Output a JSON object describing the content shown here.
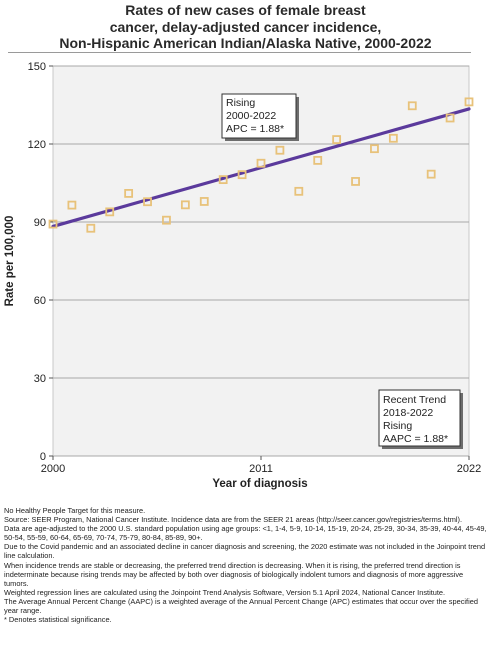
{
  "title_lines": [
    "Rates of new cases of female breast",
    "cancer, delay-adjusted cancer incidence,",
    "Non-Hispanic American Indian/Alaska Native,  2000-2022"
  ],
  "chart_data": {
    "type": "scatter",
    "xlabel": "Year of diagnosis",
    "ylabel": "Rate per 100,000",
    "xlim": [
      2000,
      2022
    ],
    "ylim": [
      0,
      150
    ],
    "x_ticks": [
      "2000",
      "2011",
      "2022"
    ],
    "y_ticks": [
      "0",
      "30",
      "60",
      "90",
      "120",
      "150"
    ],
    "grid": "horizontal",
    "series": [
      {
        "marker": "square",
        "color": "#e8c27a",
        "x": [
          2000,
          2001,
          2002,
          2003,
          2004,
          2005,
          2006,
          2007,
          2008,
          2009,
          2010,
          2011,
          2012,
          2013,
          2014,
          2015,
          2016,
          2017,
          2018,
          2019,
          2020,
          2021,
          2022
        ],
        "y": [
          89.2,
          96.5,
          87.6,
          93.9,
          101.0,
          97.8,
          90.7,
          96.6,
          97.9,
          106.3,
          108.2,
          112.6,
          117.6,
          101.8,
          113.7,
          121.7,
          105.6,
          118.2,
          122.2,
          134.7,
          108.4,
          130.0,
          136.2
        ]
      },
      {
        "line": "trend",
        "color": "#5b3a9c",
        "x": [
          2000,
          2022
        ],
        "y": [
          88.3,
          133.5
        ]
      }
    ],
    "annotations": [
      {
        "lines": [
          "Rising",
          "2000-2022",
          "APC =  1.88*"
        ]
      },
      {
        "lines": [
          "Recent Trend",
          "2018-2022",
          "Rising",
          "AAPC =  1.88*"
        ]
      }
    ]
  },
  "footnotes": [
    "No Healthy People Target for this measure.",
    "Source: SEER Program, National Cancer Institute. Incidence data are from the SEER 21 areas (http://seer.cancer.gov/registries/terms.html).",
    "Data are age-adjusted to the 2000 U.S. standard population using age groups: <1, 1-4, 5-9, 10-14, 15-19, 20-24, 25-29, 30-34, 35-39, 40-44, 45-49, 50-54, 55-59, 60-64, 65-69, 70-74, 75-79, 80-84, 85-89, 90+.",
    "Due to the Covid pandemic and an associated decline in cancer diagnosis and screening, the 2020 estimate was not included in the Joinpoint trend line calculation.",
    "When incidence trends are stable or decreasing, the preferred trend direction is decreasing. When it is rising, the preferred trend direction is indeterminate because rising trends may be affected by both over diagnosis of biologically indolent tumors and diagnosis of more aggressive tumors.",
    "Weighted regression lines are calculated using the Joinpoint Trend Analysis Software, Version 5.1 April 2024, National Cancer Institute.",
    "The Average Annual Percent Change (AAPC) is a weighted average of the Annual Percent Change (APC) estimates that occur over the specified year range.",
    "* Denotes statistical significance."
  ]
}
